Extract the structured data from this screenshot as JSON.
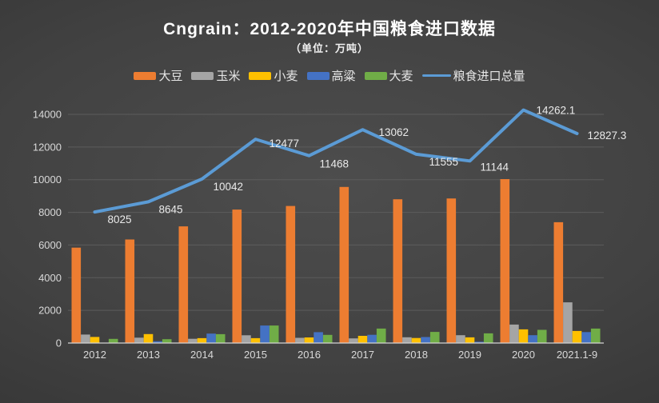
{
  "colors": {
    "background_center": "#4b4b4b",
    "background_edge": "#2c2c2c",
    "grid": "#5c5c5c",
    "axis_line": "#d4d4d4",
    "axis_text": "#d9d9d9",
    "title_text": "#ffffff",
    "data_label_text": "#eaeaea"
  },
  "chart_data": {
    "type": "bar",
    "combo": "grouped-bar-with-line",
    "title": "Cngrain：2012-2020年中国粮食进口数据",
    "subtitle": "（单位：万吨）",
    "unit": "万吨",
    "xlabel": "",
    "ylabel": "",
    "ylim": [
      0,
      14000
    ],
    "ytick_step": 2000,
    "yticks": [
      "0",
      "2000",
      "4000",
      "6000",
      "8000",
      "10000",
      "12000",
      "14000"
    ],
    "grid": true,
    "legend_position": "top",
    "categories": [
      "2012",
      "2013",
      "2014",
      "2015",
      "2016",
      "2017",
      "2018",
      "2019",
      "2020",
      "2021.1-9"
    ],
    "series": [
      {
        "name": "大豆",
        "key": "soybean",
        "type": "bar",
        "color": "#ED7D31",
        "values": [
          5838,
          6338,
          7140,
          8169,
          8391,
          9553,
          8803,
          8851,
          10033,
          7397
        ]
      },
      {
        "name": "玉米",
        "key": "corn",
        "type": "bar",
        "color": "#A5A5A5",
        "values": [
          521,
          327,
          260,
          473,
          317,
          283,
          352,
          479,
          1130,
          2493
        ]
      },
      {
        "name": "小麦",
        "key": "wheat",
        "type": "bar",
        "color": "#FFC000",
        "values": [
          370,
          550,
          300,
          301,
          341,
          442,
          310,
          349,
          838,
          739
        ]
      },
      {
        "name": "高粱",
        "key": "sorghum",
        "type": "bar",
        "color": "#4472C4",
        "values": [
          9,
          108,
          578,
          1070,
          665,
          506,
          365,
          79,
          481,
          670
        ]
      },
      {
        "name": "大麦",
        "key": "barley",
        "type": "bar",
        "color": "#70AD47",
        "values": [
          253,
          234,
          541,
          1073,
          500,
          886,
          682,
          593,
          808,
          886
        ]
      },
      {
        "name": "粮食进口总量",
        "key": "total-grain-imports",
        "type": "line",
        "color": "#5B9BD5",
        "values": [
          8025,
          8645,
          10042,
          12477,
          11468,
          13062,
          11555,
          11144,
          14262.1,
          12827.3
        ],
        "labels": [
          "8025",
          "8645",
          "10042",
          "12477",
          "11468",
          "13062",
          "11555",
          "11144",
          "14262.1",
          "12827.3"
        ]
      }
    ]
  }
}
